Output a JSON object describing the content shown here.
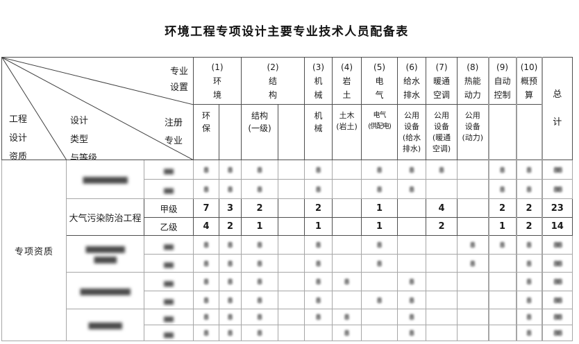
{
  "title": "环境工程专项设计主要专业技术人员配备表",
  "corner": {
    "profession_setup": "专业\n设置",
    "registered_profession": "注册\n专业",
    "design_type_grade": "设计\n类型\n与等级",
    "engineering_design_qualification": "工程\n设计\n资质"
  },
  "header": {
    "groups": [
      {
        "label": "(1)\n环\n境"
      },
      {
        "label": "(2)\n结\n构"
      },
      {
        "label": "(3)\n机\n械"
      },
      {
        "label": "(4)\n岩\n土"
      },
      {
        "label": "(5)\n电\n气"
      },
      {
        "label": "(6)\n给水\n排水"
      },
      {
        "label": "(7)\n暖通\n空调"
      },
      {
        "label": "(8)\n热能\n动力"
      },
      {
        "label": "(9)\n自动\n控制"
      },
      {
        "label": "(10)\n概预\n算"
      }
    ],
    "subs": [
      "环\n保",
      "",
      "结构\n(一级)",
      "",
      "机\n械",
      "土木\n(岩土)",
      "电气\n(供配电)",
      "公用\n设备\n(给水\n排水)",
      "公用\n设备\n(暖通\n空调)",
      "公用\n设备\n(动力)",
      "",
      ""
    ],
    "total": "总\n计"
  },
  "body": {
    "qualification": "专项资质",
    "groups": [
      {
        "blurred": true,
        "name": "▆▆▆▆▆▆▆▆",
        "rows": [
          {
            "grade": "▆▆",
            "values": [
              "8",
              "8",
              "8",
              "",
              "8",
              "",
              "8",
              "8",
              "8",
              "",
              "8",
              "8",
              "88"
            ]
          },
          {
            "grade": "▆▆",
            "values": [
              "8",
              "8",
              "8",
              "",
              "8",
              "",
              "8",
              "8",
              "",
              "",
              "8",
              "8",
              "88"
            ]
          }
        ]
      },
      {
        "blurred": false,
        "name": "大气污染防治工程",
        "rows": [
          {
            "grade": "甲级",
            "values": [
              "7",
              "3",
              "2",
              "",
              "2",
              "",
              "1",
              "",
              "4",
              "",
              "2",
              "2",
              "23"
            ]
          },
          {
            "grade": "乙级",
            "values": [
              "4",
              "2",
              "1",
              "",
              "1",
              "",
              "1",
              "",
              "2",
              "",
              "1",
              "2",
              "14"
            ]
          }
        ]
      },
      {
        "blurred": true,
        "name": "▆▆▆▆▆▆▆\n▆▆▆▆",
        "rows": [
          {
            "grade": "▆▆",
            "values": [
              "8",
              "8",
              "8",
              "",
              "8",
              "",
              "8",
              "",
              "",
              "8",
              "8",
              "8",
              "88"
            ]
          },
          {
            "grade": "▆▆",
            "values": [
              "8",
              "8",
              "8",
              "",
              "8",
              "",
              "8",
              "",
              "",
              "8",
              "",
              "8",
              "88"
            ]
          }
        ]
      },
      {
        "blurred": true,
        "name": "▆▆▆▆▆▆▆▆▆",
        "rows": [
          {
            "grade": "▆▆",
            "values": [
              "8",
              "8",
              "8",
              "",
              "8",
              "8",
              "",
              "8",
              "",
              "",
              "",
              "8",
              "88"
            ]
          },
          {
            "grade": "▆▆",
            "values": [
              "8",
              "8",
              "8",
              "",
              "8",
              "",
              "8",
              "8",
              "",
              "",
              "",
              "8",
              "88"
            ]
          }
        ]
      },
      {
        "blurred": true,
        "name": "▆▆▆▆▆▆",
        "rows": [
          {
            "grade": "▆▆",
            "values": [
              "8",
              "8",
              "8",
              "",
              "8",
              "8",
              "",
              "8",
              "",
              "",
              "",
              "8",
              "88"
            ]
          },
          {
            "grade": "▆▆",
            "values": [
              "8",
              "8",
              "8",
              "",
              "",
              "8",
              "",
              "8",
              "",
              "",
              "",
              "8",
              "88"
            ]
          }
        ]
      }
    ]
  }
}
